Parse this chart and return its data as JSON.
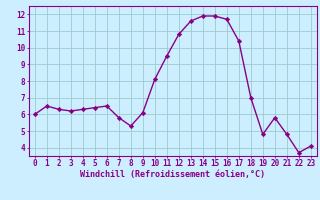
{
  "x": [
    0,
    1,
    2,
    3,
    4,
    5,
    6,
    7,
    8,
    9,
    10,
    11,
    12,
    13,
    14,
    15,
    16,
    17,
    18,
    19,
    20,
    21,
    22,
    23
  ],
  "y": [
    6.0,
    6.5,
    6.3,
    6.2,
    6.3,
    6.4,
    6.5,
    5.8,
    5.3,
    6.1,
    8.1,
    9.5,
    10.8,
    11.6,
    11.9,
    11.9,
    11.7,
    10.4,
    7.0,
    4.8,
    5.8,
    4.8,
    3.7,
    4.1
  ],
  "line_color": "#880088",
  "marker": "D",
  "marker_size": 2.2,
  "bg_color": "#cceeff",
  "grid_color": "#99cccc",
  "axis_color": "#880088",
  "spine_color": "#880088",
  "xlabel": "Windchill (Refroidissement éolien,°C)",
  "xlabel_fontsize": 6.0,
  "ylabel_ticks": [
    4,
    5,
    6,
    7,
    8,
    9,
    10,
    11,
    12
  ],
  "xlim": [
    -0.5,
    23.5
  ],
  "ylim": [
    3.5,
    12.5
  ],
  "xtick_labels": [
    "0",
    "1",
    "2",
    "3",
    "4",
    "5",
    "6",
    "7",
    "8",
    "9",
    "10",
    "11",
    "12",
    "13",
    "14",
    "15",
    "16",
    "17",
    "18",
    "19",
    "20",
    "21",
    "22",
    "23"
  ],
  "tick_fontsize": 5.5,
  "line_width": 1.0,
  "figsize": [
    3.2,
    2.0
  ],
  "dpi": 100
}
